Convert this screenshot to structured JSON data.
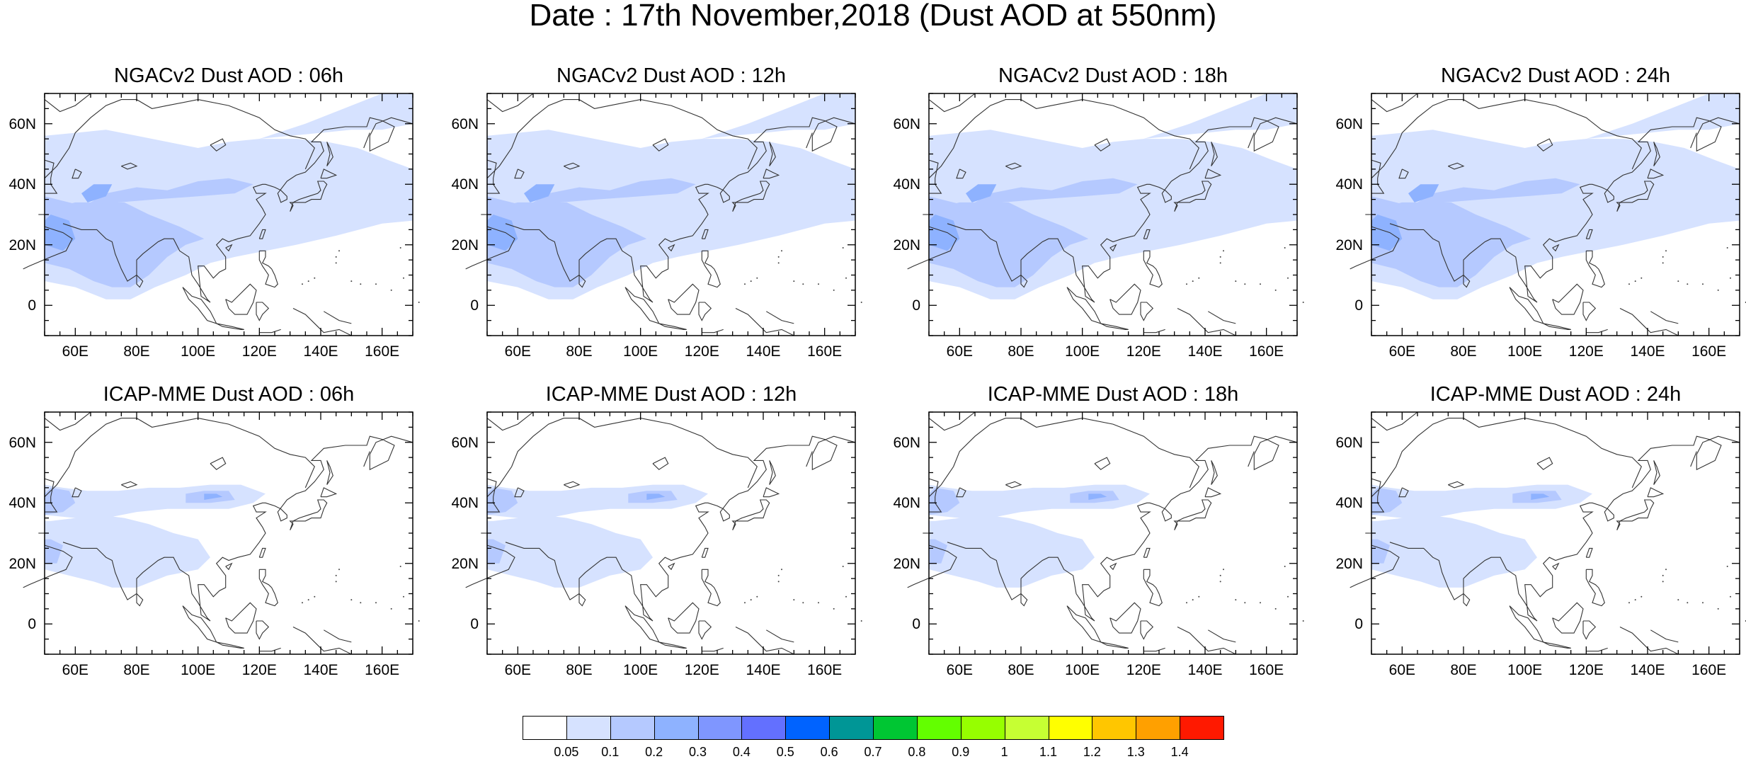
{
  "title": "Date : 17th November,2018 (Dust AOD at 550nm)",
  "lat_labels": [
    "60N",
    "40N",
    "20N",
    "0"
  ],
  "lon_labels": [
    "60E",
    "80E",
    "100E",
    "120E",
    "140E",
    "160E"
  ],
  "map_extent": {
    "lon": [
      50,
      170
    ],
    "lat": [
      -10,
      70
    ]
  },
  "panels": [
    {
      "title": "NGACv2 Dust AOD : 06h",
      "model": "NGACv2",
      "hour": "06h"
    },
    {
      "title": "NGACv2 Dust AOD : 12h",
      "model": "NGACv2",
      "hour": "12h"
    },
    {
      "title": "NGACv2 Dust AOD : 18h",
      "model": "NGACv2",
      "hour": "18h"
    },
    {
      "title": "NGACv2 Dust AOD : 24h",
      "model": "NGACv2",
      "hour": "24h"
    },
    {
      "title": "ICAP-MME Dust AOD : 06h",
      "model": "ICAP-MME",
      "hour": "06h"
    },
    {
      "title": "ICAP-MME Dust AOD : 12h",
      "model": "ICAP-MME",
      "hour": "12h"
    },
    {
      "title": "ICAP-MME Dust AOD : 18h",
      "model": "ICAP-MME",
      "hour": "18h"
    },
    {
      "title": "ICAP-MME Dust AOD : 24h",
      "model": "ICAP-MME",
      "hour": "24h"
    }
  ],
  "colorbar": {
    "labels": [
      "0.05",
      "0.1",
      "0.2",
      "0.3",
      "0.4",
      "0.5",
      "0.6",
      "0.7",
      "0.8",
      "0.9",
      "1",
      "1.1",
      "1.2",
      "1.3",
      "1.4"
    ],
    "colors": [
      "#ffffff",
      "#d6e2ff",
      "#b5c9ff",
      "#8eb2ff",
      "#7f96ff",
      "#6370ff",
      "#0063ff",
      "#009696",
      "#00c633",
      "#63ff00",
      "#96ff00",
      "#c6ff33",
      "#ffff00",
      "#ffc600",
      "#ffa000",
      "#ff7c00",
      "#ff1900"
    ]
  }
}
